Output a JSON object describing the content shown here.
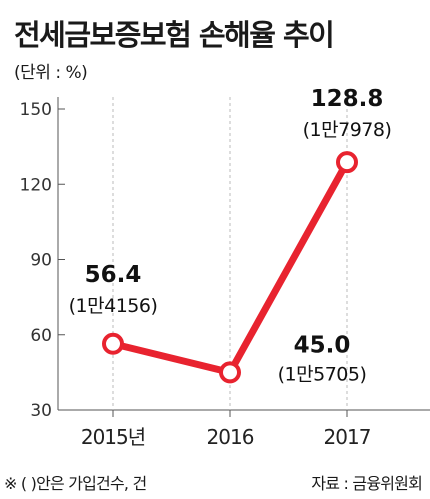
{
  "header": {
    "title": "전세금보증보험 손해율 추이",
    "unit": "(단위 : %)"
  },
  "footer": {
    "note": "※ (  )안은 가입건수, 건",
    "source": "자료 : 금융위원회"
  },
  "colors": {
    "line": "#e8232f",
    "axis": "#555555",
    "grid": "#bbbbbb",
    "marker_fill": "#ffffff"
  },
  "chart_data": {
    "type": "line",
    "categories": [
      "2015년",
      "2016",
      "2017"
    ],
    "series": [
      {
        "values": [
          56.4,
          45.0,
          128.8
        ],
        "labels": [
          "56.4",
          "45.0",
          "128.8"
        ],
        "counts": [
          "(1만4156)",
          "(1만5705)",
          "(1만7978)"
        ]
      }
    ],
    "yticks": [
      "30",
      "60",
      "90",
      "120",
      "150"
    ],
    "ylim": [
      30,
      150
    ],
    "grid": "dashed-vertical"
  }
}
